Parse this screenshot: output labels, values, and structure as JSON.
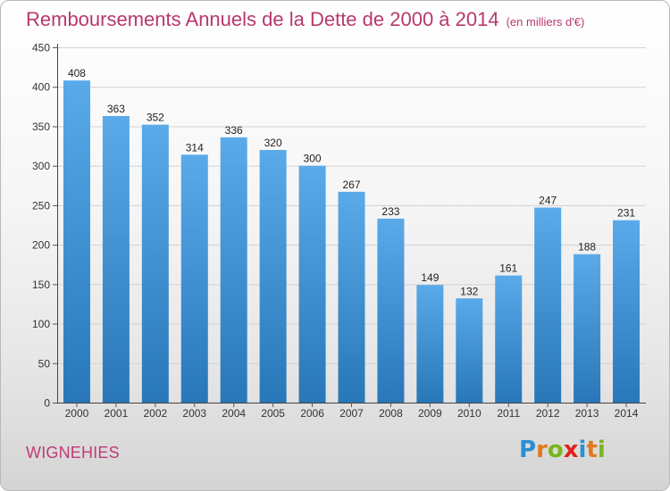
{
  "title": "Remboursements Annuels de la Dette de 2000 à 2014",
  "subtitle": "(en milliers d'€)",
  "place": "WIGNEHIES",
  "logo": {
    "text": "Proxiti",
    "letter_colors": [
      "#2a8fd6",
      "#e07a1f",
      "#7ab51d",
      "#e0201b",
      "#2a8fd6",
      "#e07a1f",
      "#7ab51d"
    ]
  },
  "colors": {
    "bar_top": "#5aaaea",
    "bar_bottom": "#2877b8",
    "title": "#b8386e",
    "place": "#c03a78"
  },
  "chart_data": {
    "type": "bar",
    "categories": [
      "2000",
      "2001",
      "2002",
      "2003",
      "2004",
      "2005",
      "2006",
      "2007",
      "2008",
      "2009",
      "2010",
      "2011",
      "2012",
      "2013",
      "2014"
    ],
    "values": [
      408,
      363,
      352,
      314,
      336,
      320,
      300,
      267,
      233,
      149,
      132,
      161,
      247,
      188,
      231
    ],
    "data_labels": [
      "408",
      "363",
      "352",
      "314",
      "336",
      "320",
      "300",
      "267",
      "233",
      "149",
      "132",
      "161",
      "247",
      "188",
      "231"
    ],
    "y_ticks": [
      0,
      50,
      100,
      150,
      200,
      250,
      300,
      350,
      400,
      450
    ],
    "ylim": [
      0,
      450
    ],
    "grid": true,
    "xlabel": "",
    "ylabel": ""
  }
}
